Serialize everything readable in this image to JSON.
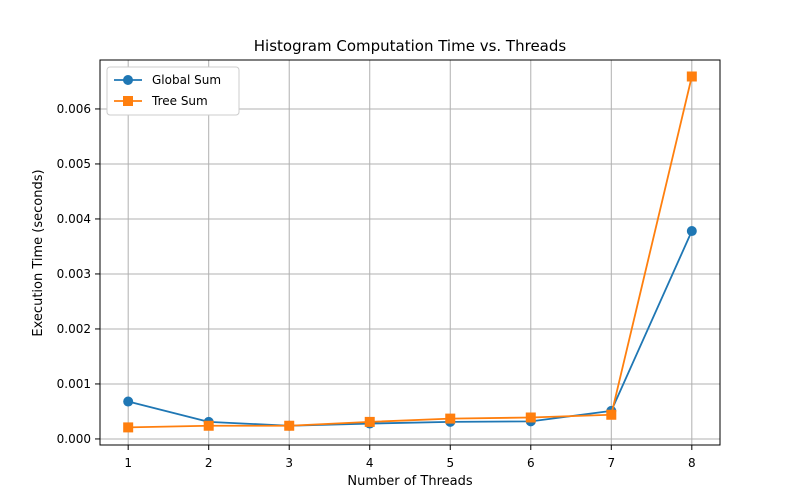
{
  "chart_data": {
    "type": "line",
    "title": "Histogram Computation Time vs. Threads",
    "xlabel": "Number of Threads",
    "ylabel": "Execution Time (seconds)",
    "x": [
      1,
      2,
      3,
      4,
      5,
      6,
      7,
      8
    ],
    "x_ticks": [
      "1",
      "2",
      "3",
      "4",
      "5",
      "6",
      "7",
      "8"
    ],
    "y_ticks": [
      "0.000",
      "0.001",
      "0.002",
      "0.003",
      "0.004",
      "0.005",
      "0.006"
    ],
    "xlim": [
      0.65,
      8.35
    ],
    "ylim": [
      -0.00011,
      0.00689
    ],
    "grid": true,
    "legend_position": "upper-left",
    "series": [
      {
        "name": "Global Sum",
        "color": "#1f77b4",
        "marker": "circle",
        "values": [
          0.00068,
          0.00031,
          0.00024,
          0.00028,
          0.00031,
          0.00032,
          0.00051,
          0.00378
        ]
      },
      {
        "name": "Tree Sum",
        "color": "#ff7f0e",
        "marker": "square",
        "values": [
          0.00021,
          0.00024,
          0.00024,
          0.00031,
          0.00037,
          0.00039,
          0.00044,
          0.00659
        ]
      }
    ]
  }
}
